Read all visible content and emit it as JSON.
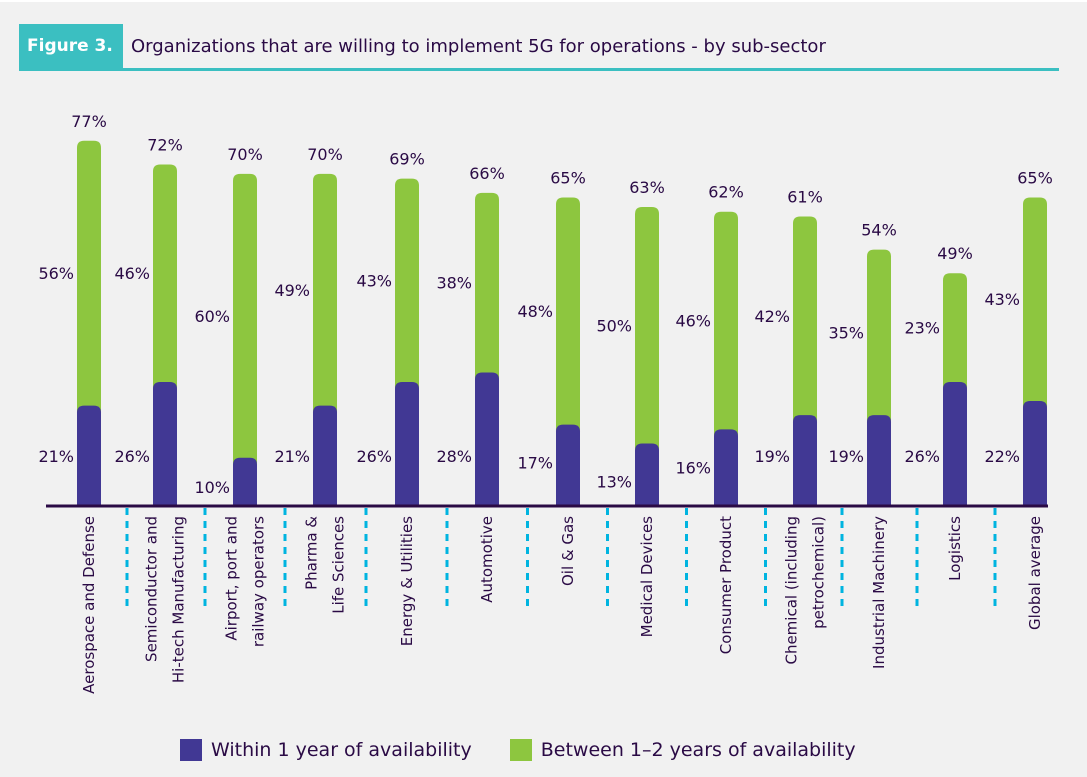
{
  "header": {
    "badge": "Figure 3.",
    "title": "Organizations that are willing to implement 5G for operations - by sub-sector"
  },
  "colors": {
    "within_1_year": "#413894",
    "between_1_2_years": "#8dc63f",
    "accent": "#3bbfc1",
    "text": "#2a0a45",
    "divider": "#00b4e0"
  },
  "chart_data": {
    "type": "bar",
    "stacked": true,
    "title": "Organizations that are willing to implement 5G for operations - by sub-sector",
    "xlabel": "",
    "ylabel": "",
    "ylim": [
      0,
      100
    ],
    "grid": false,
    "legend_position": "bottom",
    "categories": [
      [
        "Aerospace and Defense"
      ],
      [
        "Semiconductor and",
        "Hi-tech Manufacturing"
      ],
      [
        "Airport, port and",
        "railway operators"
      ],
      [
        "Pharma &",
        "Life Sciences"
      ],
      [
        "Energy & Utilities"
      ],
      [
        "Automotive"
      ],
      [
        "Oil & Gas"
      ],
      [
        "Medical Devices"
      ],
      [
        "Consumer Product"
      ],
      [
        "Chemical (including",
        "petrochemical)"
      ],
      [
        "Industrial Machinery"
      ],
      [
        "Logistics"
      ],
      [
        "Global average"
      ]
    ],
    "series": [
      {
        "name": "Within 1 year of availability",
        "values": [
          21,
          26,
          10,
          21,
          26,
          28,
          17,
          13,
          16,
          19,
          19,
          26,
          22
        ]
      },
      {
        "name": "Between 1–2 years of availability",
        "values": [
          56,
          46,
          60,
          49,
          43,
          38,
          48,
          50,
          46,
          42,
          35,
          23,
          43
        ]
      }
    ],
    "totals": [
      77,
      72,
      70,
      70,
      69,
      66,
      65,
      63,
      62,
      61,
      54,
      49,
      65
    ],
    "value_suffix": "%"
  },
  "legend": [
    {
      "label": "Within 1 year of availability"
    },
    {
      "label": "Between 1–2 years of availability"
    }
  ]
}
